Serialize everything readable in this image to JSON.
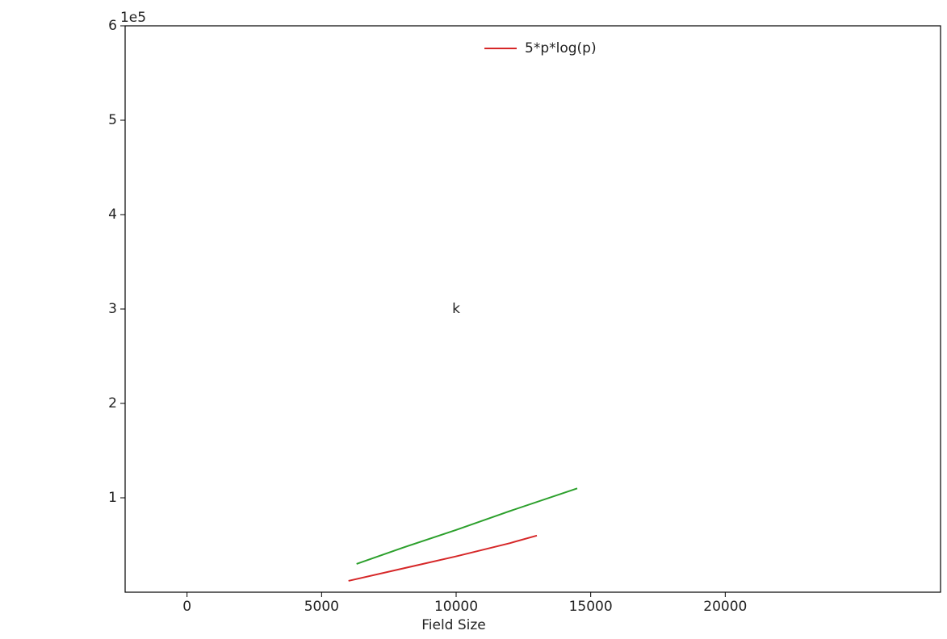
{
  "chart_data": {
    "type": "line",
    "x_label": "Field Size",
    "y_label": "k",
    "y_offset_label": "1e5",
    "xlim": [
      -2300,
      28000
    ],
    "ylim": [
      0,
      6
    ],
    "xticks": [
      0,
      5000,
      10000,
      15000,
      20000
    ],
    "yticks": [
      1,
      2,
      3,
      4,
      5,
      6
    ],
    "legend": "upper center",
    "series": [
      {
        "name": "5*p*log(p)",
        "color": "#d62728",
        "x": [
          6000,
          8000,
          10000,
          12000,
          13000
        ],
        "values": [
          0.12,
          0.25,
          0.38,
          0.52,
          0.6
        ]
      },
      {
        "color": "#2ca02c",
        "x": [
          6300,
          8000,
          10000,
          12000,
          14500
        ],
        "values": [
          0.3,
          0.47,
          0.66,
          0.86,
          1.1
        ]
      }
    ]
  }
}
